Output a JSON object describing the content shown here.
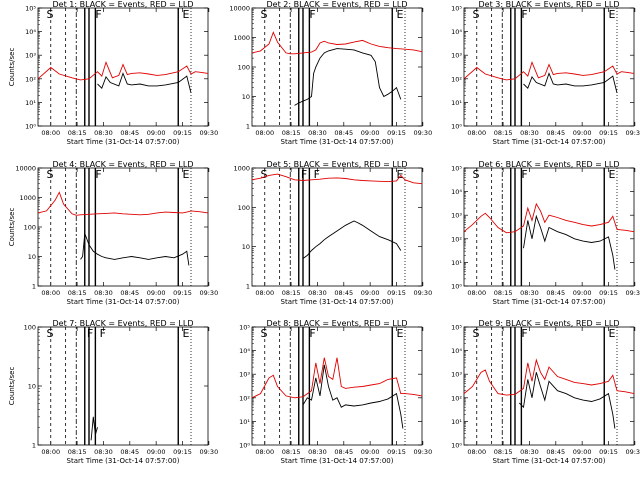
{
  "colors": {
    "events": "#000000",
    "lld": "#e00000",
    "background": "#ffffff"
  },
  "chart_data": [
    {
      "type": "line",
      "title": "Det 1: BLACK = Events, RED = LLD",
      "xlabel": "Start Time (31-Oct-14 07:57:00)",
      "ylabel": "Counts/sec",
      "yscale": "log",
      "ylim": [
        1,
        100000
      ],
      "yticks": [
        "10⁰",
        "10¹",
        "10²",
        "10³",
        "10⁴",
        "10⁵"
      ],
      "xticks": [
        "08:00",
        "08:15",
        "08:30",
        "08:45",
        "09:00",
        "09:15",
        "09:30"
      ],
      "xlim_min": [
        0,
        40
      ],
      "markers": [
        "S",
        "F",
        "E"
      ],
      "series": [
        {
          "color": "#e00000",
          "x": [
            0,
            3,
            5,
            8,
            10,
            12,
            14,
            15,
            16,
            17,
            17.5,
            19,
            20,
            21,
            22,
            24,
            26,
            28,
            30,
            33,
            35,
            36,
            37,
            38,
            39,
            40
          ],
          "y": [
            100,
            300,
            160,
            110,
            90,
            100,
            200,
            130,
            500,
            180,
            110,
            140,
            400,
            150,
            170,
            180,
            160,
            140,
            150,
            200,
            350,
            160,
            200,
            190,
            180,
            170
          ]
        },
        {
          "color": "#000000",
          "x": [
            14,
            15,
            16,
            17,
            19,
            20,
            21,
            22,
            24,
            26,
            28,
            30,
            33,
            35,
            36
          ],
          "y": [
            60,
            40,
            120,
            70,
            50,
            170,
            60,
            55,
            60,
            50,
            50,
            55,
            70,
            130,
            25
          ]
        }
      ]
    },
    {
      "type": "line",
      "title": "Det 2: BLACK = Events, RED = LLD",
      "xlabel": "Start Time (31-Oct-14 07:57:00)",
      "ylabel": "",
      "yscale": "log",
      "ylim": [
        1,
        10000
      ],
      "yticks": [
        "1",
        "10",
        "100",
        "1000",
        "10000"
      ],
      "xticks": [
        "08:00",
        "08:15",
        "08:30",
        "08:45",
        "09:00",
        "09:15",
        "09:30"
      ],
      "xlim_min": [
        0,
        40
      ],
      "markers": [
        "S",
        "F",
        "E"
      ],
      "series": [
        {
          "color": "#e00000",
          "x": [
            0,
            2,
            4,
            5,
            6,
            8,
            9,
            10,
            12,
            14,
            15,
            16,
            17,
            18,
            20,
            22,
            24,
            26,
            28,
            30,
            32,
            34,
            36,
            38,
            40
          ],
          "y": [
            300,
            350,
            600,
            1500,
            700,
            300,
            280,
            280,
            300,
            320,
            380,
            650,
            750,
            650,
            580,
            600,
            700,
            800,
            600,
            500,
            450,
            420,
            400,
            380,
            330
          ]
        },
        {
          "color": "#000000",
          "x": [
            10,
            11,
            12,
            13,
            14,
            14.5,
            15,
            16,
            17,
            18,
            20,
            22,
            24,
            26,
            28,
            29,
            30,
            31,
            32,
            33,
            34,
            35
          ],
          "y": [
            5,
            6,
            7,
            8,
            10,
            60,
            100,
            200,
            300,
            350,
            420,
            400,
            380,
            300,
            250,
            150,
            20,
            10,
            12,
            15,
            20,
            8
          ]
        }
      ]
    },
    {
      "type": "line",
      "title": "Det 3: BLACK = Events, RED = LLD",
      "xlabel": "Start Time (31-Oct-14 07:57:00)",
      "ylabel": "",
      "yscale": "log",
      "ylim": [
        1,
        100000
      ],
      "yticks": [
        "10⁰",
        "10¹",
        "10²",
        "10³",
        "10⁴",
        "10⁵"
      ],
      "xticks": [
        "08:00",
        "08:15",
        "08:30",
        "08:45",
        "09:00",
        "09:15",
        "09:30"
      ],
      "xlim_min": [
        0,
        40
      ],
      "markers": [
        "S",
        "F",
        "E"
      ],
      "series": [
        {
          "color": "#e00000",
          "x": [
            0,
            3,
            5,
            8,
            10,
            12,
            14,
            15,
            16,
            17,
            17.5,
            19,
            20,
            21,
            22,
            24,
            26,
            28,
            30,
            33,
            35,
            36,
            37,
            38,
            39,
            40
          ],
          "y": [
            100,
            300,
            160,
            110,
            90,
            100,
            200,
            130,
            500,
            180,
            110,
            140,
            400,
            150,
            170,
            180,
            160,
            140,
            150,
            200,
            350,
            160,
            200,
            190,
            180,
            170
          ]
        },
        {
          "color": "#000000",
          "x": [
            14,
            15,
            16,
            17,
            19,
            20,
            21,
            22,
            24,
            26,
            28,
            30,
            33,
            35,
            36
          ],
          "y": [
            60,
            40,
            120,
            70,
            50,
            170,
            60,
            55,
            60,
            50,
            50,
            55,
            70,
            130,
            25
          ]
        }
      ]
    },
    {
      "type": "line",
      "title": "Det 4: BLACK = Events, RED = LLD",
      "xlabel": "Start Time (31-Oct-14 07:57:00)",
      "ylabel": "Counts/sec",
      "yscale": "log",
      "ylim": [
        1,
        10000
      ],
      "yticks": [
        "1",
        "10",
        "100",
        "1000",
        "10000"
      ],
      "xticks": [
        "08:00",
        "08:15",
        "08:30",
        "08:45",
        "09:00",
        "09:15",
        "09:30"
      ],
      "xlim_min": [
        0,
        40
      ],
      "markers": [
        "S",
        "F",
        "E"
      ],
      "series": [
        {
          "color": "#e00000",
          "x": [
            0,
            2,
            4,
            5,
            6,
            8,
            9,
            10,
            12,
            14,
            16,
            18,
            20,
            22,
            24,
            26,
            28,
            30,
            32,
            34,
            35,
            36,
            38,
            40
          ],
          "y": [
            300,
            350,
            800,
            1500,
            600,
            280,
            250,
            260,
            270,
            280,
            290,
            300,
            280,
            270,
            260,
            270,
            300,
            320,
            310,
            300,
            320,
            350,
            330,
            300
          ]
        },
        {
          "color": "#000000",
          "x": [
            10,
            10.5,
            11,
            12,
            13,
            14,
            15,
            16,
            18,
            20,
            22,
            24,
            26,
            28,
            30,
            32,
            34,
            35,
            35.5
          ],
          "y": [
            8,
            10,
            60,
            25,
            15,
            12,
            10,
            9,
            8,
            9,
            10,
            9,
            8,
            9,
            10,
            9,
            12,
            15,
            5
          ]
        }
      ]
    },
    {
      "type": "line",
      "title": "Det 5: BLACK = Events, RED = LLD",
      "xlabel": "Start Time (31-Oct-14 07:57:00)",
      "ylabel": "",
      "yscale": "log",
      "ylim": [
        1,
        1000
      ],
      "yticks": [
        "1",
        "10",
        "100",
        "1000"
      ],
      "xticks": [
        "08:00",
        "08:15",
        "08:30",
        "08:45",
        "09:00",
        "09:15",
        "09:30"
      ],
      "xlim_min": [
        0,
        40
      ],
      "markers": [
        "S",
        "F",
        "F",
        "E"
      ],
      "series": [
        {
          "color": "#e00000",
          "x": [
            0,
            2,
            4,
            6,
            8,
            10,
            12,
            14,
            16,
            18,
            20,
            22,
            24,
            26,
            28,
            30,
            32,
            34,
            35,
            36,
            38,
            40
          ],
          "y": [
            500,
            550,
            650,
            700,
            600,
            500,
            480,
            500,
            520,
            550,
            560,
            540,
            500,
            480,
            470,
            460,
            450,
            470,
            650,
            500,
            420,
            400
          ]
        },
        {
          "color": "#000000",
          "x": [
            12,
            13,
            14,
            15,
            16,
            17,
            18,
            20,
            22,
            24,
            25,
            26,
            28,
            30,
            32,
            34,
            35
          ],
          "y": [
            5,
            6,
            8,
            10,
            12,
            15,
            18,
            25,
            35,
            45,
            40,
            35,
            25,
            18,
            15,
            12,
            8
          ]
        }
      ]
    },
    {
      "type": "line",
      "title": "Det 6: BLACK = Events, RED = LLD",
      "xlabel": "Start Time (31-Oct-14 07:57:00)",
      "ylabel": "",
      "yscale": "log",
      "ylim": [
        1,
        100000
      ],
      "yticks": [
        "10⁰",
        "10¹",
        "10²",
        "10³",
        "10⁴",
        "10⁵"
      ],
      "xticks": [
        "08:00",
        "08:15",
        "08:30",
        "08:45",
        "09:00",
        "09:15",
        "09:30"
      ],
      "xlim_min": [
        0,
        40
      ],
      "markers": [
        "S",
        "F",
        "E"
      ],
      "series": [
        {
          "color": "#e00000",
          "x": [
            0,
            2,
            4,
            5,
            6,
            8,
            10,
            12,
            14,
            15,
            16,
            17,
            18,
            19,
            20,
            22,
            24,
            26,
            28,
            30,
            32,
            34,
            35,
            36,
            38,
            40
          ],
          "y": [
            200,
            400,
            900,
            1200,
            800,
            300,
            180,
            200,
            350,
            2000,
            600,
            3000,
            1500,
            500,
            1000,
            800,
            600,
            500,
            400,
            350,
            400,
            500,
            900,
            250,
            230,
            200
          ]
        },
        {
          "color": "#000000",
          "x": [
            14,
            15,
            16,
            17,
            18,
            19,
            20,
            22,
            24,
            26,
            28,
            30,
            32,
            34,
            35,
            35.5
          ],
          "y": [
            40,
            600,
            100,
            900,
            300,
            80,
            300,
            200,
            150,
            100,
            80,
            70,
            80,
            120,
            20,
            5
          ]
        }
      ]
    },
    {
      "type": "line",
      "title": "Det 7: BLACK = Events, RED = LLD",
      "xlabel": "Start Time (31-Oct-14 07:57:00)",
      "ylabel": "Counts/sec",
      "yscale": "log",
      "ylim": [
        1,
        100
      ],
      "yticks": [
        "1",
        "10",
        "100"
      ],
      "xticks": [
        "08:00",
        "08:15",
        "08:30",
        "08:45",
        "09:00",
        "09:15",
        "09:30"
      ],
      "xlim_min": [
        0,
        40
      ],
      "markers": [
        "S",
        "F",
        "F",
        "E"
      ],
      "series": [
        {
          "color": "#000000",
          "x": [
            12.5,
            13,
            13.5,
            14
          ],
          "y": [
            1.2,
            3,
            1.5,
            2
          ]
        }
      ]
    },
    {
      "type": "line",
      "title": "Det 8: BLACK = Events, RED = LLD",
      "xlabel": "Start Time (31-Oct-14 07:57:00)",
      "ylabel": "",
      "yscale": "log",
      "ylim": [
        1,
        100000
      ],
      "yticks": [
        "10⁰",
        "10¹",
        "10²",
        "10³",
        "10⁴",
        "10⁵"
      ],
      "xticks": [
        "08:00",
        "08:15",
        "08:30",
        "08:45",
        "09:00",
        "09:15",
        "09:30"
      ],
      "xlim_min": [
        0,
        40
      ],
      "markers": [
        "S",
        "F",
        "E"
      ],
      "series": [
        {
          "color": "#e00000",
          "x": [
            0,
            2,
            4,
            5,
            6,
            8,
            10,
            12,
            14,
            15,
            16,
            17,
            18,
            19,
            20,
            21,
            22,
            24,
            26,
            28,
            30,
            32,
            34,
            35,
            36,
            38,
            40
          ],
          "y": [
            100,
            150,
            700,
            900,
            300,
            120,
            100,
            110,
            200,
            3000,
            400,
            5000,
            800,
            600,
            5000,
            300,
            250,
            280,
            300,
            350,
            400,
            600,
            700,
            150,
            150,
            140,
            120
          ]
        },
        {
          "color": "#000000",
          "x": [
            12,
            13,
            14,
            15,
            16,
            17,
            18,
            19,
            20,
            21,
            22,
            24,
            26,
            28,
            30,
            32,
            34,
            35,
            35.5
          ],
          "y": [
            50,
            100,
            80,
            700,
            120,
            2500,
            300,
            80,
            100,
            40,
            50,
            45,
            50,
            60,
            70,
            90,
            150,
            20,
            5
          ]
        }
      ]
    },
    {
      "type": "line",
      "title": "Det 9: BLACK = Events, RED = LLD",
      "xlabel": "Start Time (31-Oct-14 07:57:00)",
      "ylabel": "",
      "yscale": "log",
      "ylim": [
        1,
        100000
      ],
      "yticks": [
        "10⁰",
        "10¹",
        "10²",
        "10³",
        "10⁴",
        "10⁵"
      ],
      "xticks": [
        "08:00",
        "08:15",
        "08:30",
        "08:45",
        "09:00",
        "09:15",
        "09:30"
      ],
      "xlim_min": [
        0,
        40
      ],
      "markers": [
        "S",
        "F",
        "E"
      ],
      "series": [
        {
          "color": "#e00000",
          "x": [
            0,
            2,
            4,
            5,
            6,
            8,
            10,
            12,
            14,
            15,
            16,
            17,
            18,
            19,
            20,
            22,
            24,
            26,
            28,
            30,
            32,
            34,
            35,
            36,
            38,
            40
          ],
          "y": [
            150,
            300,
            1200,
            1500,
            500,
            150,
            130,
            140,
            250,
            3000,
            500,
            4000,
            1200,
            600,
            2000,
            800,
            600,
            450,
            400,
            350,
            400,
            500,
            900,
            200,
            180,
            150
          ]
        },
        {
          "color": "#000000",
          "x": [
            13,
            14,
            15,
            16,
            17,
            18,
            19,
            20,
            22,
            24,
            26,
            28,
            30,
            32,
            34,
            35,
            35.5
          ],
          "y": [
            60,
            40,
            600,
            100,
            1200,
            300,
            80,
            500,
            200,
            150,
            100,
            80,
            70,
            90,
            150,
            20,
            5
          ]
        }
      ]
    }
  ]
}
